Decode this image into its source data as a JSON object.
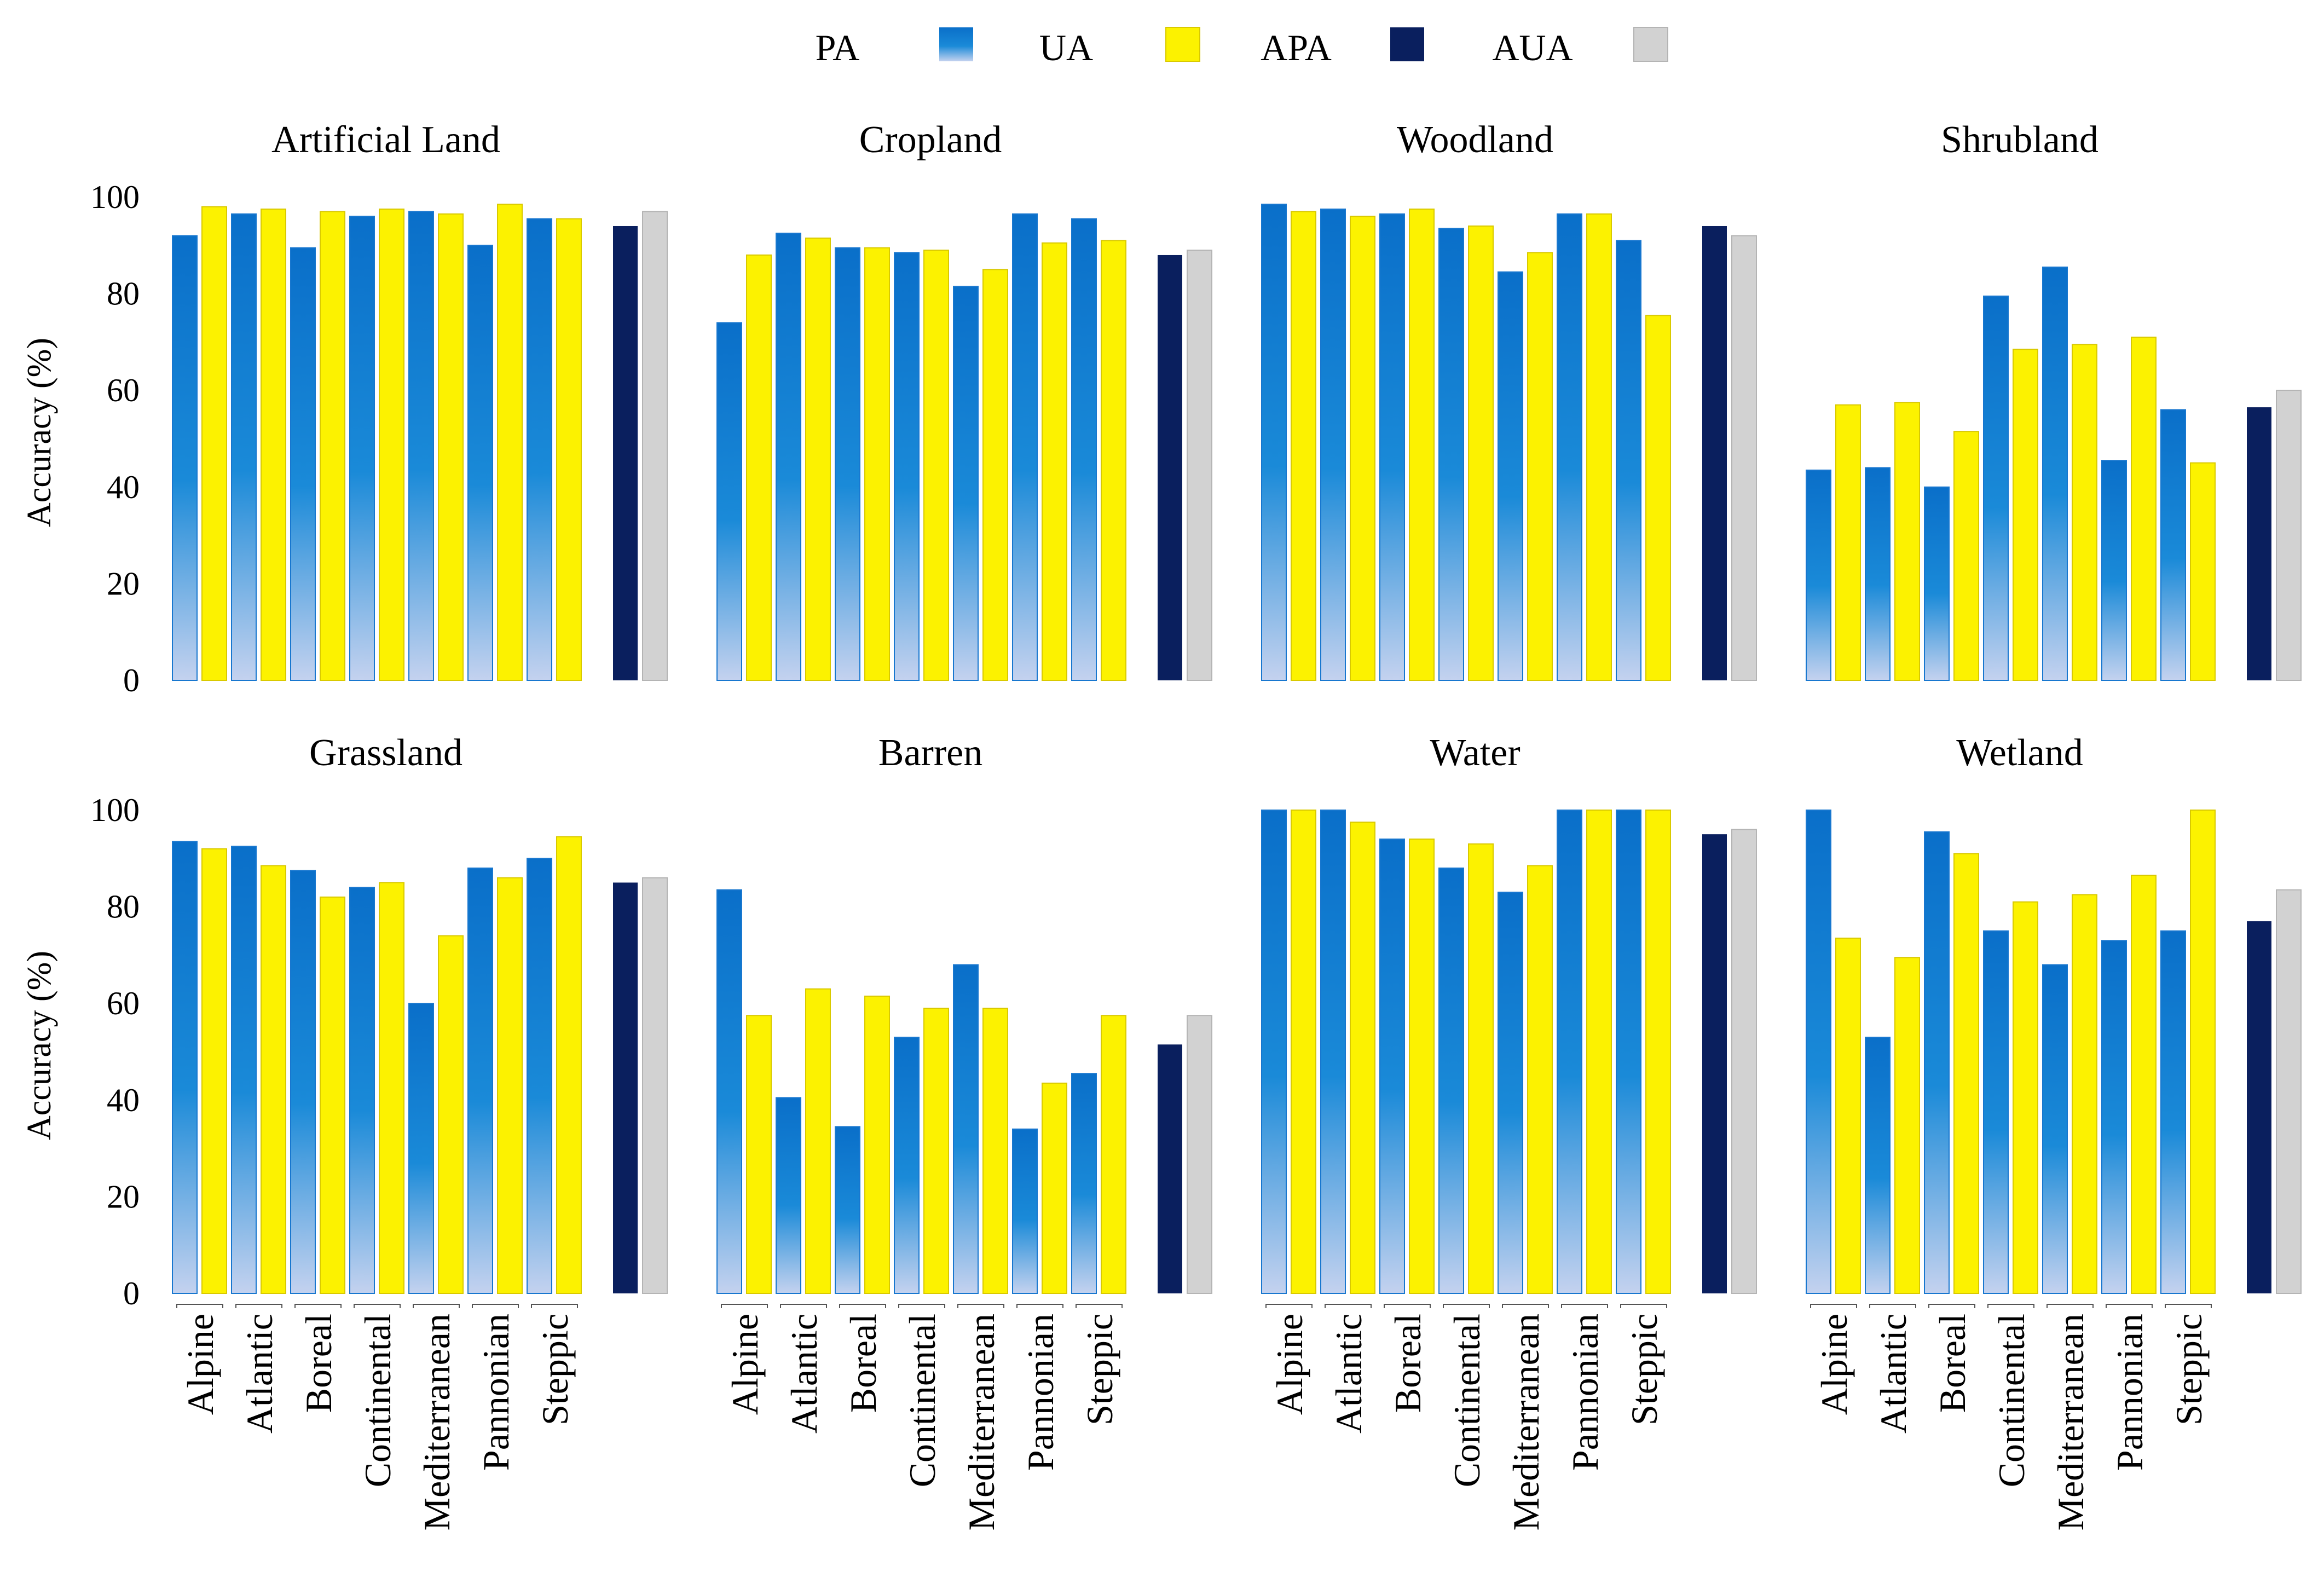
{
  "legend": [
    {
      "label": "PA",
      "key": "PA"
    },
    {
      "label": "UA",
      "key": "UA"
    },
    {
      "label": "APA",
      "key": "APA"
    },
    {
      "label": "AUA",
      "key": "AUA"
    }
  ],
  "colors": {
    "pa_top": "#0a6fc9",
    "pa_mid": "#1a8ad8",
    "pa_bottom": "#c4d2ef",
    "pa_stroke": "#1877cf",
    "ua": "#fcf200",
    "ua_stroke": "#d9c900",
    "apa": "#0a1f5e",
    "aua": "#d2d2d2",
    "aua_stroke": "#b4b4b4"
  },
  "chart_data": {
    "type": "bar",
    "ylabel": "Accuracy (%)",
    "ylim": [
      0,
      100
    ],
    "yticks": [
      0,
      20,
      40,
      60,
      80,
      100
    ],
    "categories": [
      "Alpine",
      "Atlantic",
      "Boreal",
      "Continental",
      "Mediterranean",
      "Pannonian",
      "Steppic"
    ],
    "series_names": [
      "PA",
      "UA",
      "APA",
      "AUA"
    ],
    "panels": [
      {
        "title": "Artificial Land",
        "PA": [
          92,
          96.5,
          89.5,
          96,
          97,
          90,
          95.5
        ],
        "UA": [
          98,
          97.5,
          97,
          97.5,
          96.5,
          98.5,
          95.5
        ],
        "APA": 94,
        "AUA": 97
      },
      {
        "title": "Cropland",
        "PA": [
          74,
          92.5,
          89.5,
          88.5,
          81.5,
          96.5,
          95.5
        ],
        "UA": [
          88,
          91.5,
          89.5,
          89,
          85,
          90.5,
          91
        ],
        "APA": 88,
        "AUA": 89
      },
      {
        "title": "Woodland",
        "PA": [
          98.5,
          97.5,
          96.5,
          93.5,
          84.5,
          96.5,
          91
        ],
        "UA": [
          97,
          96,
          97.5,
          94,
          88.5,
          96.5,
          75.5
        ],
        "APA": 94,
        "AUA": 92
      },
      {
        "title": "Shrubland",
        "PA": [
          43.5,
          44,
          40,
          79.5,
          85.5,
          45.5,
          56
        ],
        "UA": [
          57,
          57.5,
          51.5,
          68.5,
          69.5,
          71,
          45
        ],
        "APA": 56.5,
        "AUA": 60
      },
      {
        "title": "Grassland",
        "PA": [
          93.5,
          92.5,
          87.5,
          84,
          60,
          88,
          90
        ],
        "UA": [
          92,
          88.5,
          82,
          85,
          74,
          86,
          94.5
        ],
        "APA": 85,
        "AUA": 86
      },
      {
        "title": "Barren",
        "PA": [
          83.5,
          40.5,
          34.5,
          53,
          68,
          34,
          45.5
        ],
        "UA": [
          57.5,
          63,
          61.5,
          59,
          59,
          43.5,
          57.5
        ],
        "APA": 51.5,
        "AUA": 57.5
      },
      {
        "title": "Water",
        "PA": [
          100,
          100,
          94,
          88,
          83,
          100,
          100
        ],
        "UA": [
          100,
          97.5,
          94,
          93,
          88.5,
          100,
          100
        ],
        "APA": 95,
        "AUA": 96
      },
      {
        "title": "Wetland",
        "PA": [
          100,
          53,
          95.5,
          75,
          68,
          73,
          75
        ],
        "UA": [
          73.5,
          69.5,
          91,
          81,
          82.5,
          86.5,
          100
        ],
        "APA": 77,
        "AUA": 83.5
      }
    ]
  }
}
